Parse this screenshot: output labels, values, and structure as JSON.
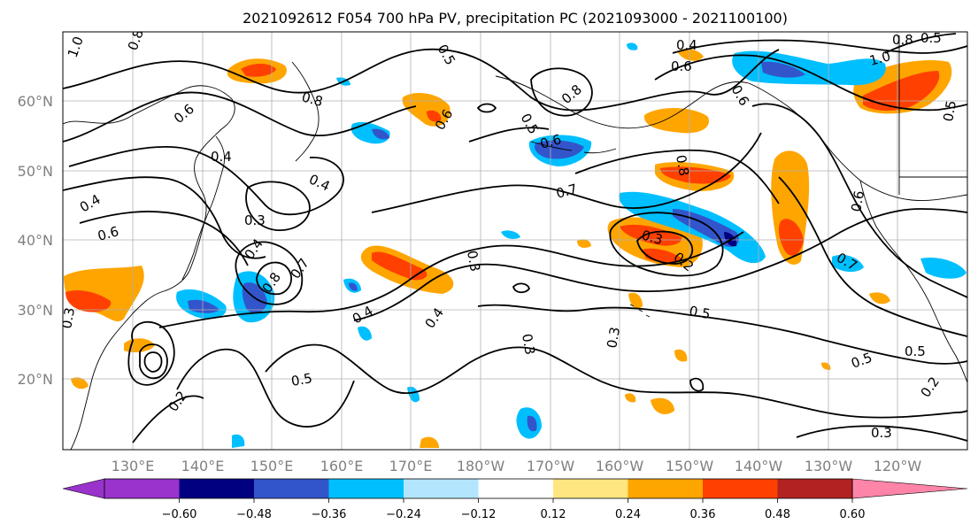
{
  "title": "2021092612 F054 700 hPa PV, precipitation PC (2021093000 - 2021100100)",
  "map": {
    "lat_labels": [
      "60°N",
      "50°N",
      "40°N",
      "30°N",
      "20°N"
    ],
    "lon_labels": [
      "130°E",
      "140°E",
      "150°E",
      "160°E",
      "170°E",
      "180°W",
      "170°W",
      "160°W",
      "150°W",
      "140°W",
      "130°W",
      "120°W"
    ],
    "contour_labels": [
      "1.0",
      "0.8",
      "0.5",
      "0.6",
      "0.4",
      "0.8",
      "0.6",
      "0.5",
      "0.6",
      "0.6",
      "0.8",
      "0.4",
      "0.4",
      "0.7",
      "0.6",
      "0.8",
      "0.8",
      "1.0",
      "0.5",
      "0.5",
      "0.6",
      "0.3",
      "0.4",
      "0.8",
      "0.7",
      "0.3",
      "0.3",
      "0.2",
      "0.6",
      "0.4",
      "0.4",
      "0.3",
      "0.4",
      "0.5",
      "0.5",
      "0.2",
      "0.5",
      "0.5",
      "0.2",
      "0.3",
      "0.7",
      "0.3",
      "0.3"
    ],
    "colors": {
      "land": "#000000",
      "grid": "#b0b0b0",
      "contour": "#000000"
    }
  },
  "colorbar": {
    "ticks": [
      "−0.60",
      "−0.48",
      "−0.36",
      "−0.24",
      "−0.12",
      "0.12",
      "0.24",
      "0.36",
      "0.48",
      "0.60"
    ],
    "colors": [
      "#9933cc",
      "#000080",
      "#3355cc",
      "#00bfff",
      "#b3e5ff",
      "#ffffff",
      "#ffe680",
      "#ffa500",
      "#ff4000",
      "#b22222",
      "#ff85a8"
    ]
  }
}
